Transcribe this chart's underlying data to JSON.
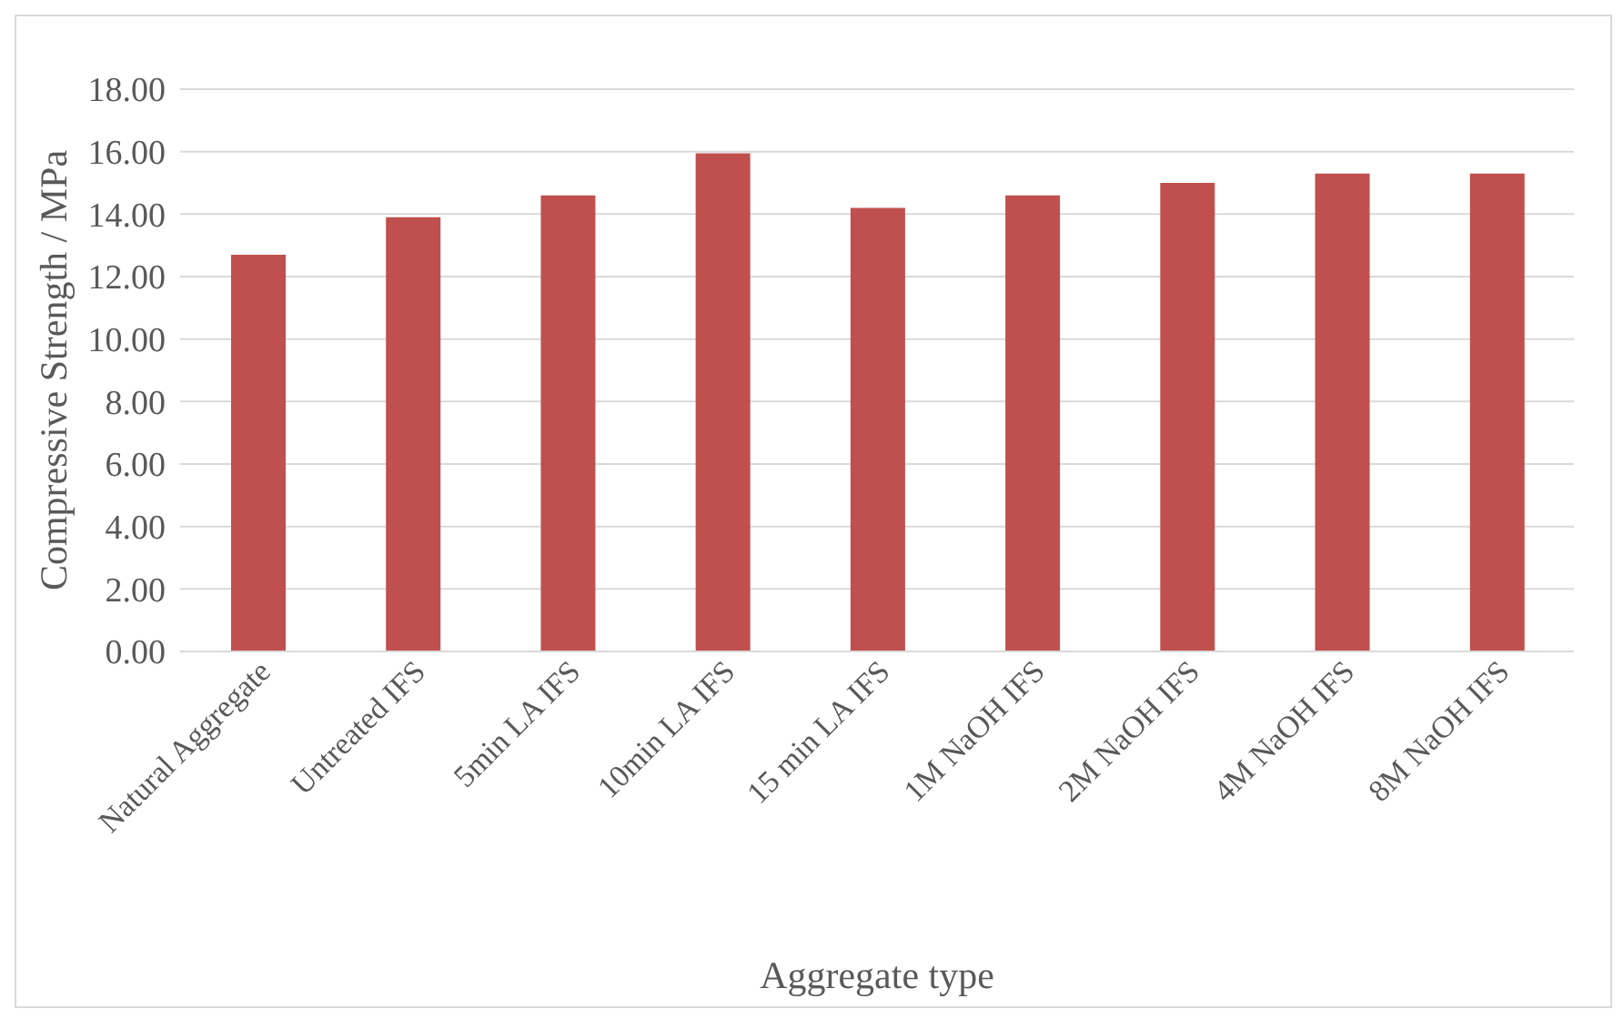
{
  "chart_data": {
    "type": "bar",
    "xlabel": "Aggregate type",
    "ylabel": "Compressive Strength / MPa",
    "categories": [
      "Natural Aggregate",
      "Untreated IFS",
      "5min LA IFS",
      "10min LA IFS",
      "15 min LA IFS",
      "1M NaOH IFS",
      "2M NaOH IFS",
      "4M NaOH IFS",
      "8M NaOH IFS"
    ],
    "values": [
      12.7,
      13.9,
      14.6,
      15.95,
      14.2,
      14.6,
      15.0,
      15.3,
      15.3
    ],
    "color": "#c0504d",
    "ylim": [
      0,
      18
    ],
    "yticks": [
      {
        "value": 0,
        "label": "0.00"
      },
      {
        "value": 2,
        "label": "2.00"
      },
      {
        "value": 4,
        "label": "4.00"
      },
      {
        "value": 6,
        "label": "6.00"
      },
      {
        "value": 8,
        "label": "8.00"
      },
      {
        "value": 10,
        "label": "10.00"
      },
      {
        "value": 12,
        "label": "12.00"
      },
      {
        "value": 14,
        "label": "14.00"
      },
      {
        "value": 16,
        "label": "16.00"
      },
      {
        "value": 18,
        "label": "18.00"
      }
    ],
    "grid": "y"
  }
}
